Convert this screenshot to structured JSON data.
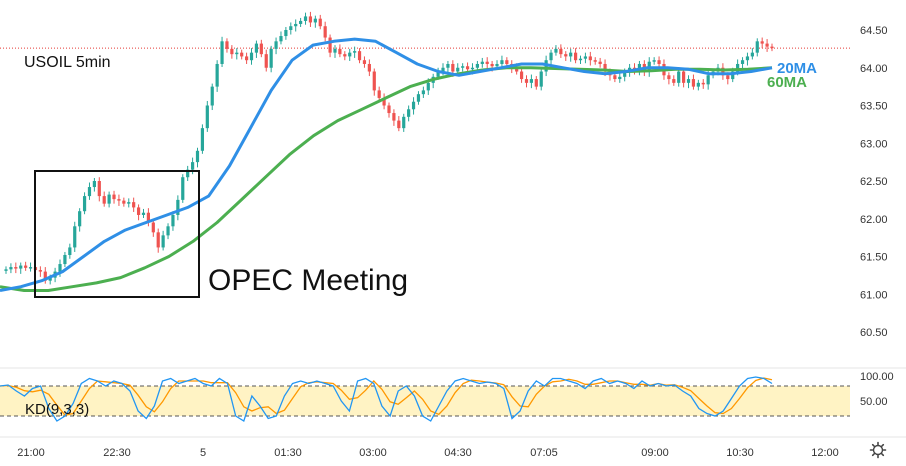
{
  "title": "USOIL 5min",
  "annotation": "OPEC Meeting",
  "ma_labels": {
    "ma20": "20MA",
    "ma60": "60MA"
  },
  "kd_label": "KD(9,3,3)",
  "colors": {
    "up": "#26a69a",
    "down": "#ef5350",
    "ma20": "#2f8fe6",
    "ma60": "#4caf50",
    "k_line": "#2196f3",
    "d_line": "#ff9800",
    "kd_band": "#fff3c4",
    "price_line": "#e53935"
  },
  "axis": {
    "y_ticks": [
      "64.50",
      "64.00",
      "63.50",
      "63.00",
      "62.50",
      "62.00",
      "61.50",
      "61.00",
      "60.50"
    ],
    "kd_ticks": [
      "100.00",
      "50.00"
    ],
    "x_ticks": [
      "21:00",
      "22:30",
      "5",
      "01:30",
      "03:00",
      "04:30",
      "07:05",
      "09:00",
      "10:30",
      "12:00"
    ]
  },
  "chart_data": {
    "type": "candlestick",
    "title": "USOIL 5min",
    "ylim": [
      60.2,
      64.85
    ],
    "y_ticks": [
      64.5,
      64.0,
      63.5,
      63.0,
      62.5,
      62.0,
      61.5,
      61.0,
      60.5
    ],
    "x_ticks": [
      "21:00",
      "22:30",
      "5",
      "01:30",
      "03:00",
      "04:30",
      "07:05",
      "09:00",
      "10:30",
      "12:00"
    ],
    "last_price_level": 64.26,
    "ohlc_close": [
      61.33,
      61.36,
      61.34,
      61.38,
      61.35,
      61.36,
      61.32,
      61.3,
      61.18,
      61.22,
      61.3,
      61.4,
      61.52,
      61.62,
      61.9,
      62.1,
      62.3,
      62.42,
      62.5,
      62.3,
      62.2,
      62.32,
      62.26,
      62.24,
      62.2,
      62.22,
      62.15,
      62.05,
      62.08,
      61.95,
      61.82,
      61.62,
      61.78,
      61.9,
      62.05,
      62.25,
      62.55,
      62.65,
      62.75,
      62.9,
      63.2,
      63.5,
      63.75,
      64.05,
      64.35,
      64.25,
      64.18,
      64.2,
      64.15,
      64.1,
      64.2,
      64.32,
      64.18,
      64.0,
      64.25,
      64.35,
      64.42,
      64.5,
      64.55,
      64.58,
      64.62,
      64.68,
      64.6,
      64.65,
      64.55,
      64.4,
      64.2,
      64.25,
      64.18,
      64.15,
      64.2,
      64.22,
      64.1,
      64.05,
      63.95,
      63.7,
      63.6,
      63.5,
      63.4,
      63.3,
      63.2,
      63.35,
      63.45,
      63.55,
      63.65,
      63.7,
      63.8,
      63.88,
      63.95,
      64.0,
      64.05,
      63.95,
      64.0,
      64.02,
      63.98,
      64.0,
      64.05,
      64.08,
      64.05,
      64.02,
      64.05,
      64.1,
      64.05,
      64.0,
      63.95,
      63.85,
      63.8,
      63.85,
      63.75,
      63.95,
      64.1,
      64.2,
      64.25,
      64.18,
      64.15,
      64.2,
      64.1,
      64.12,
      64.15,
      64.1,
      64.08,
      64.05,
      63.95,
      63.9,
      63.85,
      63.88,
      63.95,
      64.0,
      63.95,
      64.05,
      63.95,
      64.08,
      64.1,
      64.05,
      63.9,
      63.85,
      63.8,
      63.95,
      63.8,
      63.85,
      63.75,
      63.8,
      63.78,
      63.9,
      63.95,
      64.0,
      63.9,
      63.85,
      63.95,
      64.05,
      64.1,
      64.15,
      64.2,
      64.35,
      64.32,
      64.28,
      64.26
    ],
    "ma20_trend": [
      61.05,
      61.1,
      61.18,
      61.3,
      61.5,
      61.7,
      61.85,
      61.95,
      62.05,
      62.15,
      62.3,
      62.7,
      63.2,
      63.7,
      64.1,
      64.3,
      64.35,
      64.38,
      64.35,
      64.2,
      64.05,
      63.95,
      63.9,
      63.95,
      64.0,
      64.05,
      64.05,
      64.0,
      63.95,
      63.92,
      63.95,
      64.0,
      64.0,
      63.98,
      63.92,
      63.92,
      63.95,
      64.0
    ],
    "ma60_trend": [
      61.1,
      61.05,
      61.05,
      61.1,
      61.15,
      61.22,
      61.35,
      61.5,
      61.7,
      61.95,
      62.25,
      62.55,
      62.85,
      63.1,
      63.3,
      63.45,
      63.6,
      63.75,
      63.85,
      63.92,
      63.97,
      64.0,
      64.0,
      63.99,
      63.98,
      63.97,
      63.95,
      63.96,
      63.98,
      63.98,
      63.97,
      63.98,
      64.0
    ],
    "kd": {
      "label": "KD(9,3,3)",
      "ylim": [
        0,
        100
      ],
      "upper_band": 80,
      "lower_band": 20,
      "k": [
        80,
        82,
        70,
        60,
        75,
        80,
        35,
        10,
        20,
        45,
        85,
        95,
        90,
        80,
        90,
        85,
        70,
        30,
        15,
        40,
        90,
        95,
        85,
        90,
        95,
        85,
        80,
        95,
        85,
        20,
        10,
        60,
        40,
        15,
        20,
        60,
        85,
        90,
        85,
        90,
        85,
        80,
        50,
        30,
        90,
        95,
        85,
        40,
        20,
        70,
        80,
        60,
        20,
        10,
        40,
        70,
        90,
        95,
        90,
        85,
        88,
        85,
        75,
        15,
        30,
        70,
        90,
        80,
        95,
        95,
        90,
        85,
        75,
        90,
        95,
        85,
        90,
        85,
        75,
        90,
        80,
        85,
        80,
        82,
        70,
        60,
        35,
        25,
        20,
        30,
        55,
        80,
        95,
        98,
        95,
        85
      ]
    },
    "annotations": [
      {
        "text": "OPEC Meeting",
        "kind": "box"
      },
      {
        "text": "20MA",
        "series": "ma20"
      },
      {
        "text": "60MA",
        "series": "ma60"
      }
    ]
  }
}
